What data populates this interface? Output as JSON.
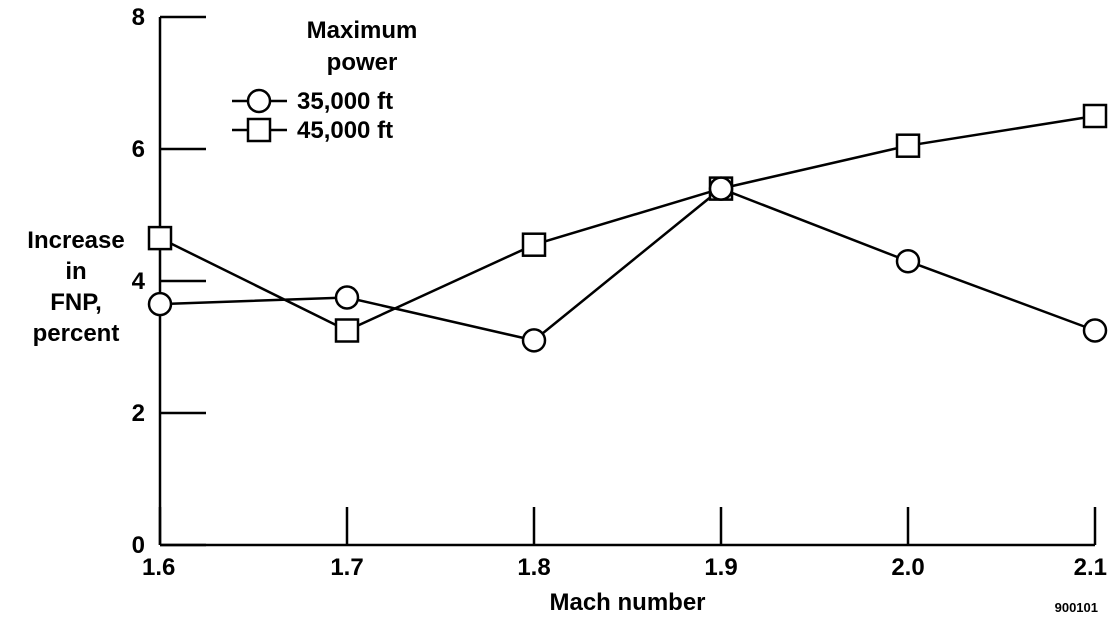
{
  "chart_data": {
    "type": "line",
    "title": "",
    "xlabel": "Mach number",
    "ylabel": [
      "Increase",
      "in",
      "FNP,",
      "percent"
    ],
    "xlim": [
      1.6,
      2.1
    ],
    "ylim": [
      0,
      8
    ],
    "x_ticks": [
      1.6,
      1.7,
      1.8,
      1.9,
      2.0,
      2.1
    ],
    "x_tick_labels": [
      "1.6",
      "1.7",
      "1.8",
      "1.9",
      "2.0",
      "2.1"
    ],
    "y_ticks": [
      0,
      2,
      4,
      6,
      8
    ],
    "y_tick_labels": [
      "0",
      "2",
      "4",
      "6",
      "8"
    ],
    "grid": false,
    "legend": {
      "title": [
        "Maximum",
        "power"
      ],
      "placement": "top-left"
    },
    "series": [
      {
        "name": "35,000 ft",
        "marker": "circle",
        "x": [
          1.6,
          1.7,
          1.8,
          1.9,
          2.0,
          2.1
        ],
        "y": [
          3.65,
          3.75,
          3.1,
          5.4,
          4.3,
          3.25
        ]
      },
      {
        "name": "45,000 ft",
        "marker": "square",
        "x": [
          1.6,
          1.7,
          1.8,
          1.9,
          2.0,
          2.1
        ],
        "y": [
          4.65,
          3.25,
          4.55,
          5.4,
          6.05,
          6.5
        ]
      }
    ],
    "annotations": [
      "900101"
    ]
  }
}
